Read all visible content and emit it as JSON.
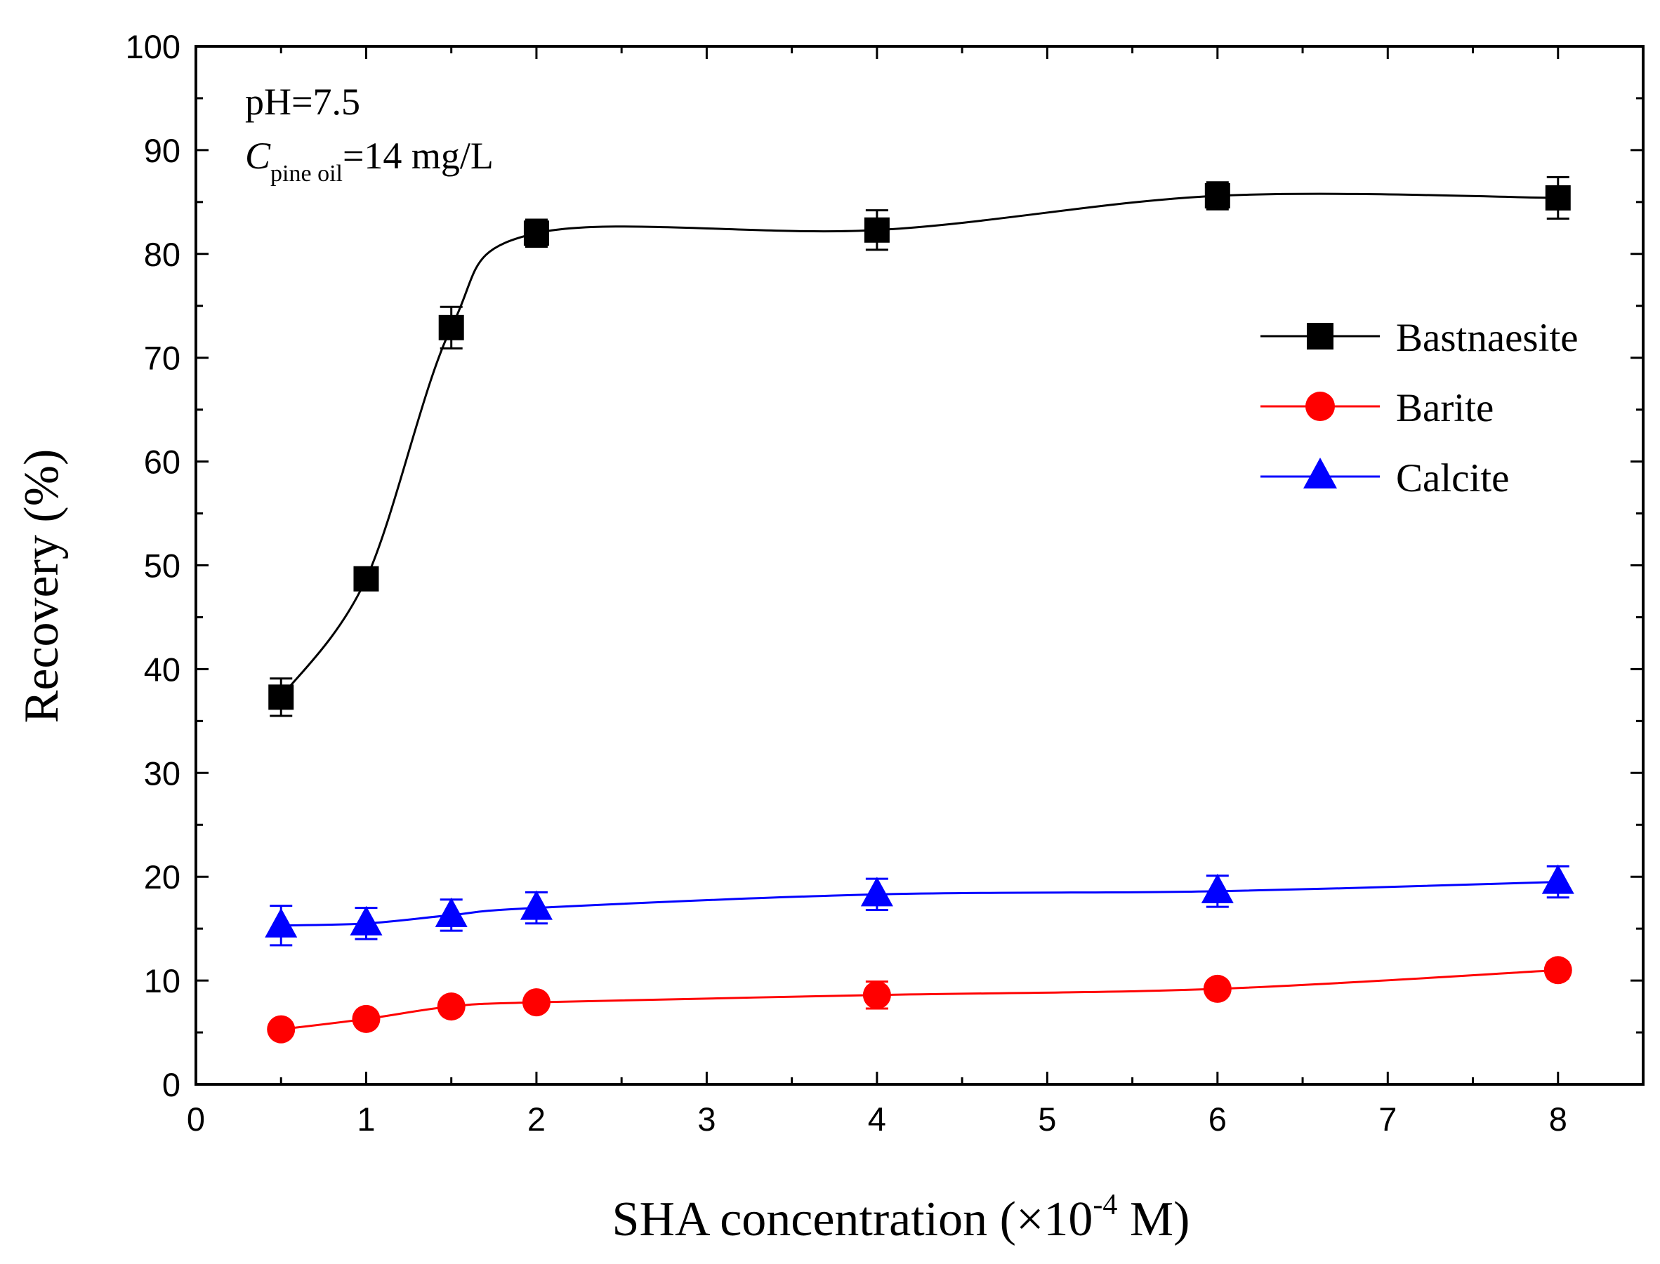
{
  "chart_data": {
    "type": "line",
    "title": "",
    "xlabel": {
      "main": "SHA concentration (",
      "times": "×",
      "base": "10",
      "exponent": "-4",
      "unit": " M",
      "close": ")"
    },
    "ylabel": "Recovery (%)",
    "xlim": [
      0,
      8.5
    ],
    "ylim": [
      0,
      100
    ],
    "xticks": [
      0,
      1,
      2,
      3,
      4,
      5,
      6,
      7,
      8
    ],
    "yticks": [
      0,
      10,
      20,
      30,
      40,
      50,
      60,
      70,
      80,
      90,
      100
    ],
    "x_tick_labels": [
      "0",
      "1",
      "2",
      "3",
      "4",
      "5",
      "6",
      "7",
      "8"
    ],
    "y_tick_labels": [
      "0",
      "10",
      "20",
      "30",
      "40",
      "50",
      "60",
      "70",
      "80",
      "90",
      "100"
    ],
    "grid": false,
    "legend_position": "right, upper-middle",
    "annotations": {
      "ph": "pH=7.5",
      "c_symbol": "C",
      "c_subscript": "pine oil",
      "c_value": "=14 mg/L"
    },
    "x": [
      0.5,
      1,
      1.5,
      2,
      4,
      6,
      8
    ],
    "series": [
      {
        "name": "Bastnaesite",
        "marker": "square",
        "color": "#000000",
        "values": [
          37.3,
          48.7,
          72.9,
          82.0,
          82.3,
          85.6,
          85.4
        ],
        "errors": [
          1.8,
          0.8,
          2.0,
          1.3,
          1.9,
          1.3,
          2.0
        ]
      },
      {
        "name": "Barite",
        "marker": "circle",
        "color": "#ff0000",
        "values": [
          5.3,
          6.3,
          7.5,
          7.9,
          8.6,
          9.2,
          11.0
        ],
        "errors": [
          0.6,
          0.5,
          0.6,
          0.6,
          1.3,
          0.7,
          0.8
        ]
      },
      {
        "name": "Calcite",
        "marker": "triangle",
        "color": "#0000ff",
        "values": [
          15.3,
          15.5,
          16.3,
          17.0,
          18.3,
          18.6,
          19.5
        ],
        "errors": [
          1.9,
          1.5,
          1.5,
          1.5,
          1.5,
          1.5,
          1.5
        ]
      }
    ]
  }
}
